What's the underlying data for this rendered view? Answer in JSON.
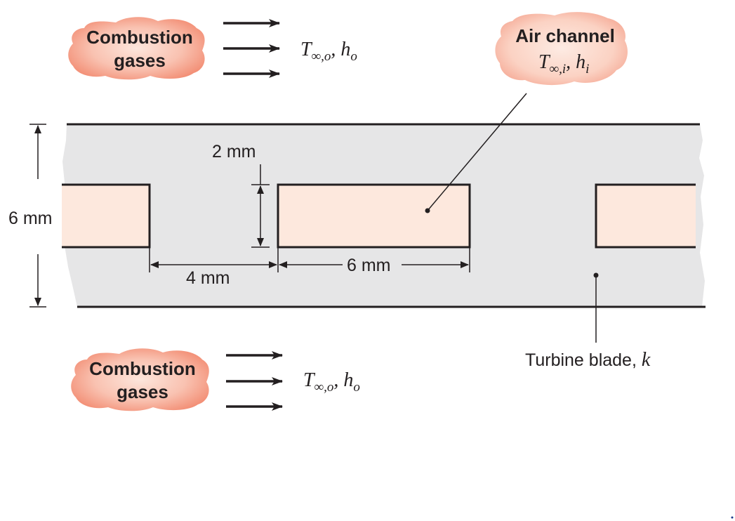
{
  "gas_top": {
    "line1": "Combustion",
    "line2": "gases"
  },
  "gas_bottom": {
    "line1": "Combustion",
    "line2": "gases"
  },
  "flow_top": {
    "symbol": "T",
    "sub": "∞,o",
    "sep": ", h",
    "sub2": "o"
  },
  "flow_bottom": {
    "symbol": "T",
    "sub": "∞,o",
    "sep": ", h",
    "sub2": "o"
  },
  "air_channel": {
    "title": "Air channel",
    "symbol": "T",
    "sub": "∞,i",
    "sep": ", h",
    "sub2": "i"
  },
  "dimensions": {
    "blade_height": "6 mm",
    "channel_height": "2 mm",
    "web_width": "4 mm",
    "channel_width": "6 mm"
  },
  "blade": {
    "label": "Turbine blade, ",
    "k": "k"
  },
  "colors": {
    "blade_fill": "#e6e6e7",
    "channel_fill": "#fde8dd",
    "cloud_fill": "#f6a08a",
    "cloud_core": "#fce1d6",
    "line": "#231f20"
  }
}
